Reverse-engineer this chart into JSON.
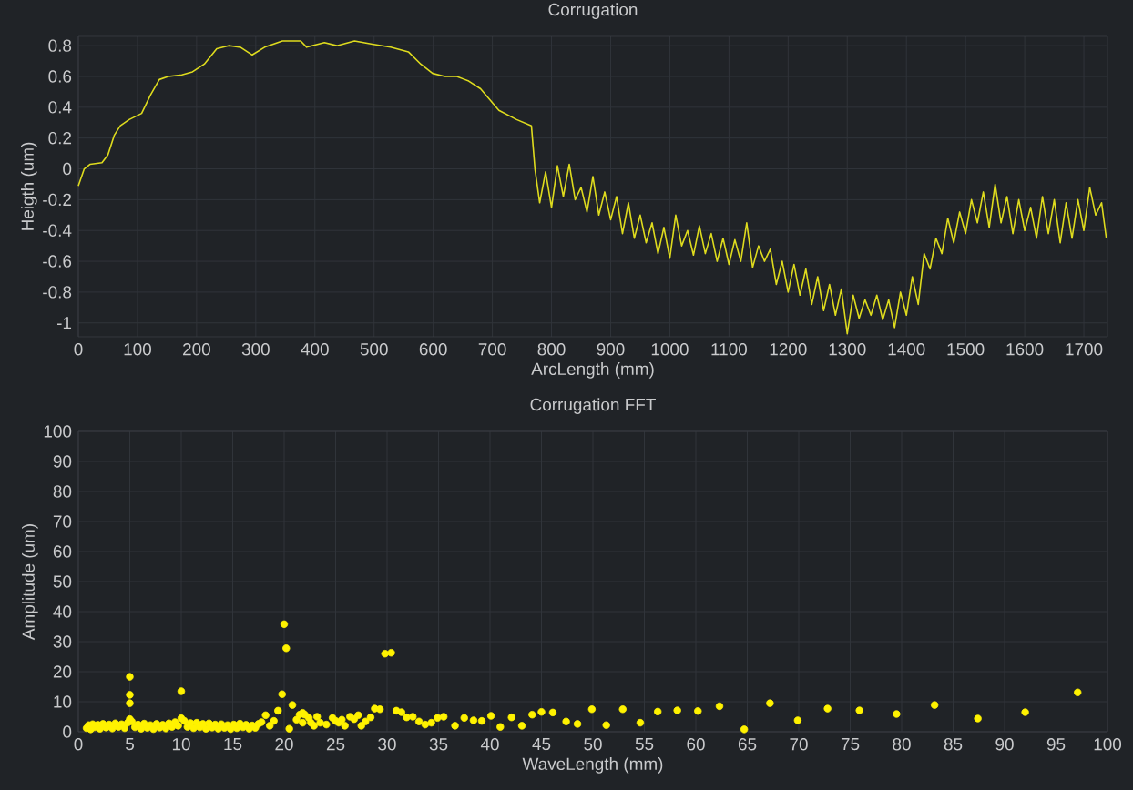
{
  "chart_data": [
    {
      "type": "line",
      "title": "Corrugation",
      "xlabel": "ArcLength (mm)",
      "ylabel": "Heigth (um)",
      "color": "#dedb1e",
      "grid": true,
      "xlim": [
        0,
        1740
      ],
      "ylim": [
        -1.09,
        0.86
      ],
      "xticks": [
        0,
        100,
        200,
        300,
        400,
        500,
        600,
        700,
        800,
        900,
        1000,
        1100,
        1200,
        1300,
        1400,
        1500,
        1600,
        1700
      ],
      "yticks": [
        -1,
        -0.8,
        -0.6,
        -0.4,
        -0.2,
        0,
        0.2,
        0.4,
        0.6,
        0.8
      ],
      "x": [
        0,
        10,
        20,
        40,
        50,
        61,
        71,
        86,
        107,
        122,
        137,
        152,
        175,
        193,
        213,
        234,
        254,
        274,
        294,
        315,
        345,
        376,
        386,
        416,
        437,
        467,
        497,
        528,
        558,
        579,
        599,
        620,
        640,
        660,
        680,
        711,
        741,
        766,
        772,
        780,
        790,
        800,
        810,
        820,
        830,
        840,
        850,
        860,
        870,
        880,
        890,
        900,
        910,
        920,
        930,
        940,
        950,
        960,
        970,
        980,
        990,
        1000,
        1010,
        1020,
        1030,
        1040,
        1050,
        1060,
        1070,
        1080,
        1090,
        1100,
        1110,
        1120,
        1130,
        1140,
        1150,
        1160,
        1170,
        1180,
        1190,
        1200,
        1210,
        1220,
        1230,
        1240,
        1250,
        1260,
        1270,
        1280,
        1290,
        1300,
        1310,
        1320,
        1330,
        1340,
        1350,
        1360,
        1370,
        1380,
        1390,
        1400,
        1410,
        1420,
        1430,
        1440,
        1450,
        1460,
        1470,
        1480,
        1490,
        1500,
        1510,
        1520,
        1530,
        1540,
        1550,
        1560,
        1570,
        1580,
        1590,
        1600,
        1610,
        1620,
        1630,
        1640,
        1650,
        1660,
        1670,
        1680,
        1690,
        1700,
        1710,
        1720,
        1730,
        1738
      ],
      "values": [
        -0.11,
        0.0,
        0.03,
        0.04,
        0.09,
        0.22,
        0.28,
        0.32,
        0.36,
        0.48,
        0.58,
        0.6,
        0.61,
        0.63,
        0.68,
        0.78,
        0.8,
        0.79,
        0.74,
        0.79,
        0.83,
        0.83,
        0.79,
        0.82,
        0.8,
        0.83,
        0.81,
        0.79,
        0.76,
        0.68,
        0.62,
        0.6,
        0.6,
        0.57,
        0.52,
        0.38,
        0.32,
        0.28,
        0.0,
        -0.22,
        -0.02,
        -0.25,
        0.02,
        -0.18,
        0.03,
        -0.2,
        -0.12,
        -0.28,
        -0.05,
        -0.3,
        -0.15,
        -0.33,
        -0.18,
        -0.42,
        -0.22,
        -0.45,
        -0.3,
        -0.48,
        -0.35,
        -0.55,
        -0.38,
        -0.58,
        -0.3,
        -0.5,
        -0.4,
        -0.56,
        -0.37,
        -0.55,
        -0.42,
        -0.6,
        -0.45,
        -0.62,
        -0.46,
        -0.6,
        -0.35,
        -0.64,
        -0.5,
        -0.6,
        -0.52,
        -0.75,
        -0.6,
        -0.8,
        -0.62,
        -0.82,
        -0.65,
        -0.88,
        -0.7,
        -0.92,
        -0.75,
        -0.95,
        -0.78,
        -1.07,
        -0.82,
        -0.97,
        -0.85,
        -0.95,
        -0.82,
        -0.98,
        -0.85,
        -1.03,
        -0.8,
        -0.95,
        -0.7,
        -0.88,
        -0.55,
        -0.65,
        -0.45,
        -0.55,
        -0.32,
        -0.48,
        -0.28,
        -0.42,
        -0.2,
        -0.35,
        -0.15,
        -0.38,
        -0.1,
        -0.35,
        -0.18,
        -0.42,
        -0.2,
        -0.4,
        -0.25,
        -0.45,
        -0.18,
        -0.42,
        -0.2,
        -0.48,
        -0.22,
        -0.45,
        -0.2,
        -0.4,
        -0.12,
        -0.3,
        -0.22,
        -0.45
      ]
    },
    {
      "type": "scatter",
      "title": "Corrugation FFT",
      "xlabel": "WaveLength (mm)",
      "ylabel": "Amplitude (um)",
      "color": "#fff200",
      "grid": true,
      "marker": "circle",
      "xlim": [
        0,
        100
      ],
      "ylim": [
        0,
        100
      ],
      "xticks": [
        0,
        5,
        10,
        15,
        20,
        25,
        30,
        35,
        40,
        45,
        50,
        55,
        60,
        65,
        70,
        75,
        80,
        85,
        90,
        95,
        100
      ],
      "yticks": [
        0,
        10,
        20,
        30,
        40,
        50,
        60,
        70,
        80,
        90,
        100
      ],
      "x": [
        0.8,
        1.0,
        1.2,
        1.4,
        1.6,
        1.9,
        2.1,
        2.4,
        2.7,
        3.0,
        3.3,
        3.6,
        3.9,
        4.2,
        4.5,
        4.8,
        5.0,
        5.0,
        5.0,
        5.0,
        5.2,
        5.5,
        5.8,
        6.1,
        6.4,
        6.7,
        7.0,
        7.3,
        7.6,
        7.9,
        8.2,
        8.5,
        8.8,
        9.1,
        9.4,
        9.7,
        10.0,
        10.0,
        10.3,
        10.6,
        10.9,
        11.2,
        11.5,
        11.8,
        12.1,
        12.4,
        12.7,
        13.0,
        13.3,
        13.6,
        13.9,
        14.2,
        14.5,
        14.8,
        15.1,
        15.4,
        15.7,
        16.0,
        16.3,
        16.6,
        16.9,
        17.2,
        17.5,
        17.8,
        18.2,
        18.6,
        19.0,
        19.4,
        19.8,
        20.0,
        20.2,
        20.5,
        20.8,
        21.2,
        21.5,
        21.8,
        21.8,
        22.0,
        22.4,
        22.6,
        22.9,
        23.2,
        23.5,
        24.1,
        24.7,
        25.0,
        25.3,
        25.6,
        25.9,
        26.4,
        26.8,
        27.2,
        27.5,
        27.9,
        28.4,
        28.8,
        29.3,
        29.8,
        30.4,
        30.9,
        31.4,
        31.9,
        32.5,
        33.1,
        33.7,
        34.3,
        34.9,
        35.5,
        36.6,
        37.5,
        38.4,
        39.2,
        40.1,
        41.0,
        42.1,
        43.1,
        44.1,
        45.0,
        46.1,
        47.4,
        48.5,
        49.9,
        51.3,
        52.9,
        54.6,
        56.3,
        58.2,
        60.2,
        62.3,
        64.7,
        67.2,
        69.9,
        72.8,
        75.9,
        79.5,
        83.2,
        87.4,
        92.0,
        97.1
      ],
      "values": [
        1.2,
        2.2,
        0.8,
        2.5,
        1.5,
        2.3,
        1.0,
        2.6,
        1.4,
        2.4,
        1.1,
        2.8,
        1.6,
        2.5,
        1.2,
        3.0,
        4.2,
        9.5,
        12.3,
        18.3,
        3.4,
        1.5,
        2.4,
        1.0,
        2.7,
        1.3,
        2.2,
        0.9,
        2.6,
        1.4,
        2.3,
        1.1,
        2.8,
        1.6,
        3.2,
        2.0,
        4.5,
        13.5,
        3.6,
        1.6,
        2.9,
        1.2,
        3.0,
        1.5,
        2.6,
        1.0,
        2.8,
        1.4,
        2.4,
        1.0,
        2.5,
        1.3,
        2.2,
        0.9,
        2.4,
        1.2,
        2.7,
        1.5,
        2.3,
        1.0,
        2.1,
        1.3,
        2.6,
        3.2,
        5.5,
        2.0,
        3.6,
        7.0,
        12.5,
        35.8,
        27.8,
        1.0,
        8.9,
        4.0,
        5.7,
        6.3,
        3.0,
        5.7,
        4.6,
        3.0,
        2.0,
        5.0,
        3.0,
        2.4,
        4.6,
        3.6,
        3.0,
        4.0,
        2.0,
        5.0,
        4.2,
        5.5,
        2.0,
        3.4,
        4.8,
        7.7,
        7.5,
        26.0,
        26.3,
        7.0,
        6.5,
        4.8,
        5.0,
        3.4,
        2.4,
        3.0,
        4.6,
        5.0,
        2.0,
        4.6,
        3.8,
        3.6,
        5.3,
        1.6,
        4.8,
        2.0,
        5.7,
        6.6,
        6.4,
        3.4,
        2.6,
        7.5,
        2.2,
        7.5,
        3.0,
        6.7,
        7.1,
        6.9,
        8.5,
        0.8,
        9.5,
        3.8,
        7.7,
        7.1,
        5.9,
        8.9,
        4.4,
        6.5,
        13.1
      ]
    }
  ]
}
